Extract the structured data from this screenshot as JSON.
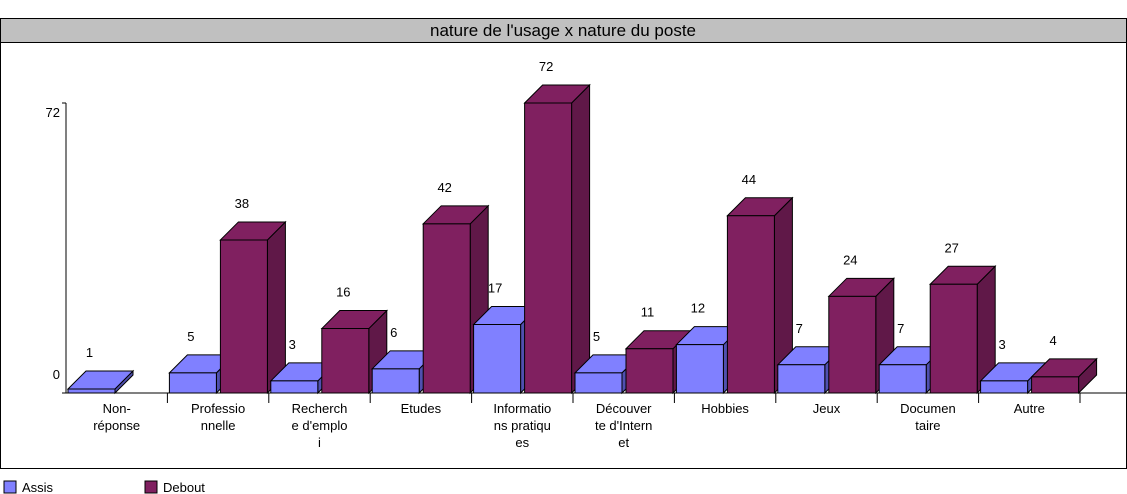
{
  "chart_data": {
    "type": "bar3d",
    "title": "nature de l'usage x nature du poste",
    "categories": [
      "Non-\nréponse",
      "Professio\nnnelle",
      "Recherch\ne d'emplo\ni",
      "Etudes",
      "Informatio\nns pratiqu\nes",
      "Découver\nte d'Intern\net",
      "Hobbies",
      "Jeux",
      "Documen\ntaire",
      "Autre"
    ],
    "series": [
      {
        "name": "Assis",
        "color": "#8080ff",
        "side": "#5050b0",
        "values": [
          1,
          5,
          3,
          6,
          17,
          5,
          12,
          7,
          7,
          3
        ]
      },
      {
        "name": "Debout",
        "color": "#802060",
        "side": "#601848",
        "values": [
          0,
          38,
          16,
          42,
          72,
          11,
          44,
          24,
          27,
          4
        ]
      }
    ],
    "ylim": [
      0,
      72
    ],
    "yticks": [
      0,
      72
    ]
  }
}
